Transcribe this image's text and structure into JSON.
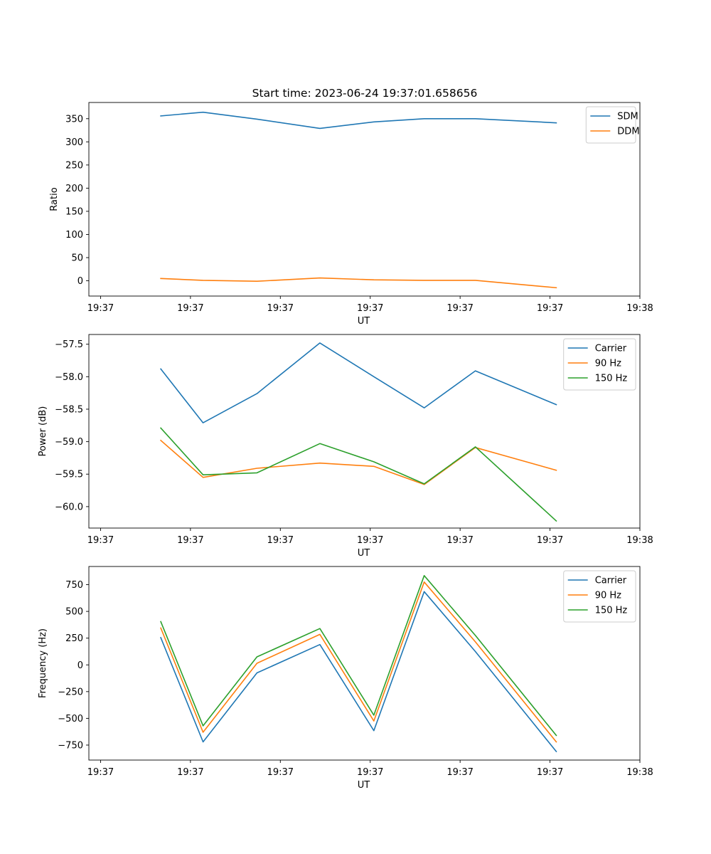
{
  "figure_title": "Start time: 2023-06-24 19:37:01.658656",
  "chart_data": [
    {
      "type": "line",
      "title": "Start time: 2023-06-24 19:37:01.658656",
      "xlabel": "UT",
      "ylabel": "Ratio",
      "x_tick_labels": [
        "19:37",
        "19:37",
        "19:37",
        "19:37",
        "19:37",
        "19:37",
        "19:38"
      ],
      "x_ticks_seconds": [
        0,
        10,
        20,
        30,
        40,
        50,
        60
      ],
      "x_seconds": [
        6.7,
        11.4,
        17.4,
        24.4,
        30.4,
        36.0,
        41.7,
        50.7
      ],
      "xlim": [
        -1.3,
        60
      ],
      "yticks": [
        0,
        50,
        100,
        150,
        200,
        250,
        300,
        350
      ],
      "ylim": [
        -33,
        385
      ],
      "grid": false,
      "legend_position": "upper right",
      "series": [
        {
          "name": "SDM",
          "color": "#1f77b4",
          "values": [
            356,
            364,
            349,
            329,
            343,
            350,
            350,
            341
          ]
        },
        {
          "name": "DDM",
          "color": "#ff7f0e",
          "values": [
            5,
            1,
            -1,
            6,
            2,
            1,
            1,
            -15
          ]
        }
      ]
    },
    {
      "type": "line",
      "title": "",
      "xlabel": "UT",
      "ylabel": "Power (dB)",
      "x_tick_labels": [
        "19:37",
        "19:37",
        "19:37",
        "19:37",
        "19:37",
        "19:37",
        "19:38"
      ],
      "x_ticks_seconds": [
        0,
        10,
        20,
        30,
        40,
        50,
        60
      ],
      "x_seconds": [
        6.7,
        11.4,
        17.4,
        24.4,
        30.4,
        36.0,
        41.7,
        50.7
      ],
      "xlim": [
        -1.3,
        60
      ],
      "yticks": [
        -60.0,
        -59.5,
        -59.0,
        -58.5,
        -58.0,
        -57.5
      ],
      "ylim": [
        -60.33,
        -57.35
      ],
      "grid": false,
      "legend_position": "upper right",
      "series": [
        {
          "name": "Carrier",
          "color": "#1f77b4",
          "values": [
            -57.88,
            -58.71,
            -58.26,
            -57.48,
            -58.0,
            -58.48,
            -57.91,
            -58.43
          ]
        },
        {
          "name": "90 Hz",
          "color": "#ff7f0e",
          "values": [
            -58.98,
            -59.55,
            -59.41,
            -59.33,
            -59.38,
            -59.66,
            -59.09,
            -59.44
          ]
        },
        {
          "name": "150 Hz",
          "color": "#2ca02c",
          "values": [
            -58.79,
            -59.51,
            -59.48,
            -59.03,
            -59.31,
            -59.65,
            -59.08,
            -60.22
          ]
        }
      ]
    },
    {
      "type": "line",
      "title": "",
      "xlabel": "UT",
      "ylabel": "Frequency (Hz)",
      "x_tick_labels": [
        "19:37",
        "19:37",
        "19:37",
        "19:37",
        "19:37",
        "19:37",
        "19:38"
      ],
      "x_ticks_seconds": [
        0,
        10,
        20,
        30,
        40,
        50,
        60
      ],
      "x_seconds": [
        6.7,
        11.4,
        17.4,
        24.4,
        30.4,
        36.0,
        41.7,
        50.7
      ],
      "xlim": [
        -1.3,
        60
      ],
      "yticks": [
        -750,
        -500,
        -250,
        0,
        250,
        500,
        750
      ],
      "ylim": [
        -890,
        920
      ],
      "grid": false,
      "legend_position": "upper right",
      "series": [
        {
          "name": "Carrier",
          "color": "#1f77b4",
          "values": [
            255,
            -720,
            -75,
            190,
            -615,
            685,
            125,
            -810
          ]
        },
        {
          "name": "90 Hz",
          "color": "#ff7f0e",
          "values": [
            345,
            -630,
            15,
            285,
            -525,
            775,
            215,
            -720
          ]
        },
        {
          "name": "150 Hz",
          "color": "#2ca02c",
          "values": [
            405,
            -570,
            75,
            340,
            -470,
            835,
            275,
            -660
          ]
        }
      ]
    }
  ]
}
